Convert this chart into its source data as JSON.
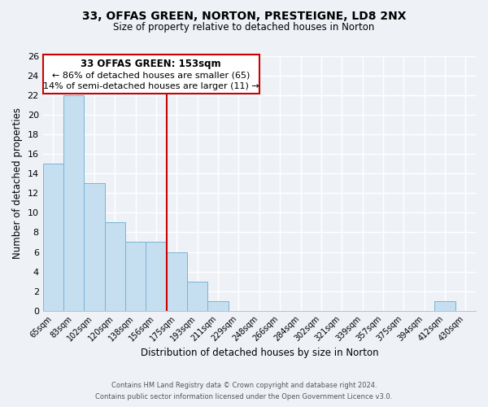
{
  "title": "33, OFFAS GREEN, NORTON, PRESTEIGNE, LD8 2NX",
  "subtitle": "Size of property relative to detached houses in Norton",
  "xlabel": "Distribution of detached houses by size in Norton",
  "ylabel": "Number of detached properties",
  "bar_color": "#c5dff0",
  "bar_edge_color": "#7ab3d4",
  "categories": [
    "65sqm",
    "83sqm",
    "102sqm",
    "120sqm",
    "138sqm",
    "156sqm",
    "175sqm",
    "193sqm",
    "211sqm",
    "229sqm",
    "248sqm",
    "266sqm",
    "284sqm",
    "302sqm",
    "321sqm",
    "339sqm",
    "357sqm",
    "375sqm",
    "394sqm",
    "412sqm",
    "430sqm"
  ],
  "values": [
    15,
    22,
    13,
    9,
    7,
    7,
    6,
    3,
    1,
    0,
    0,
    0,
    0,
    0,
    0,
    0,
    0,
    0,
    0,
    1,
    0
  ],
  "ylim": [
    0,
    26
  ],
  "yticks": [
    0,
    2,
    4,
    6,
    8,
    10,
    12,
    14,
    16,
    18,
    20,
    22,
    24,
    26
  ],
  "vline_index": 5,
  "vline_color": "#cc0000",
  "annotation_title": "33 OFFAS GREEN: 153sqm",
  "annotation_line1": "← 86% of detached houses are smaller (65)",
  "annotation_line2": "14% of semi-detached houses are larger (11) →",
  "annotation_box_edge": "#cc0000",
  "footer_line1": "Contains HM Land Registry data © Crown copyright and database right 2024.",
  "footer_line2": "Contains public sector information licensed under the Open Government Licence v3.0.",
  "background_color": "#eef2f7",
  "grid_color": "#ffffff"
}
